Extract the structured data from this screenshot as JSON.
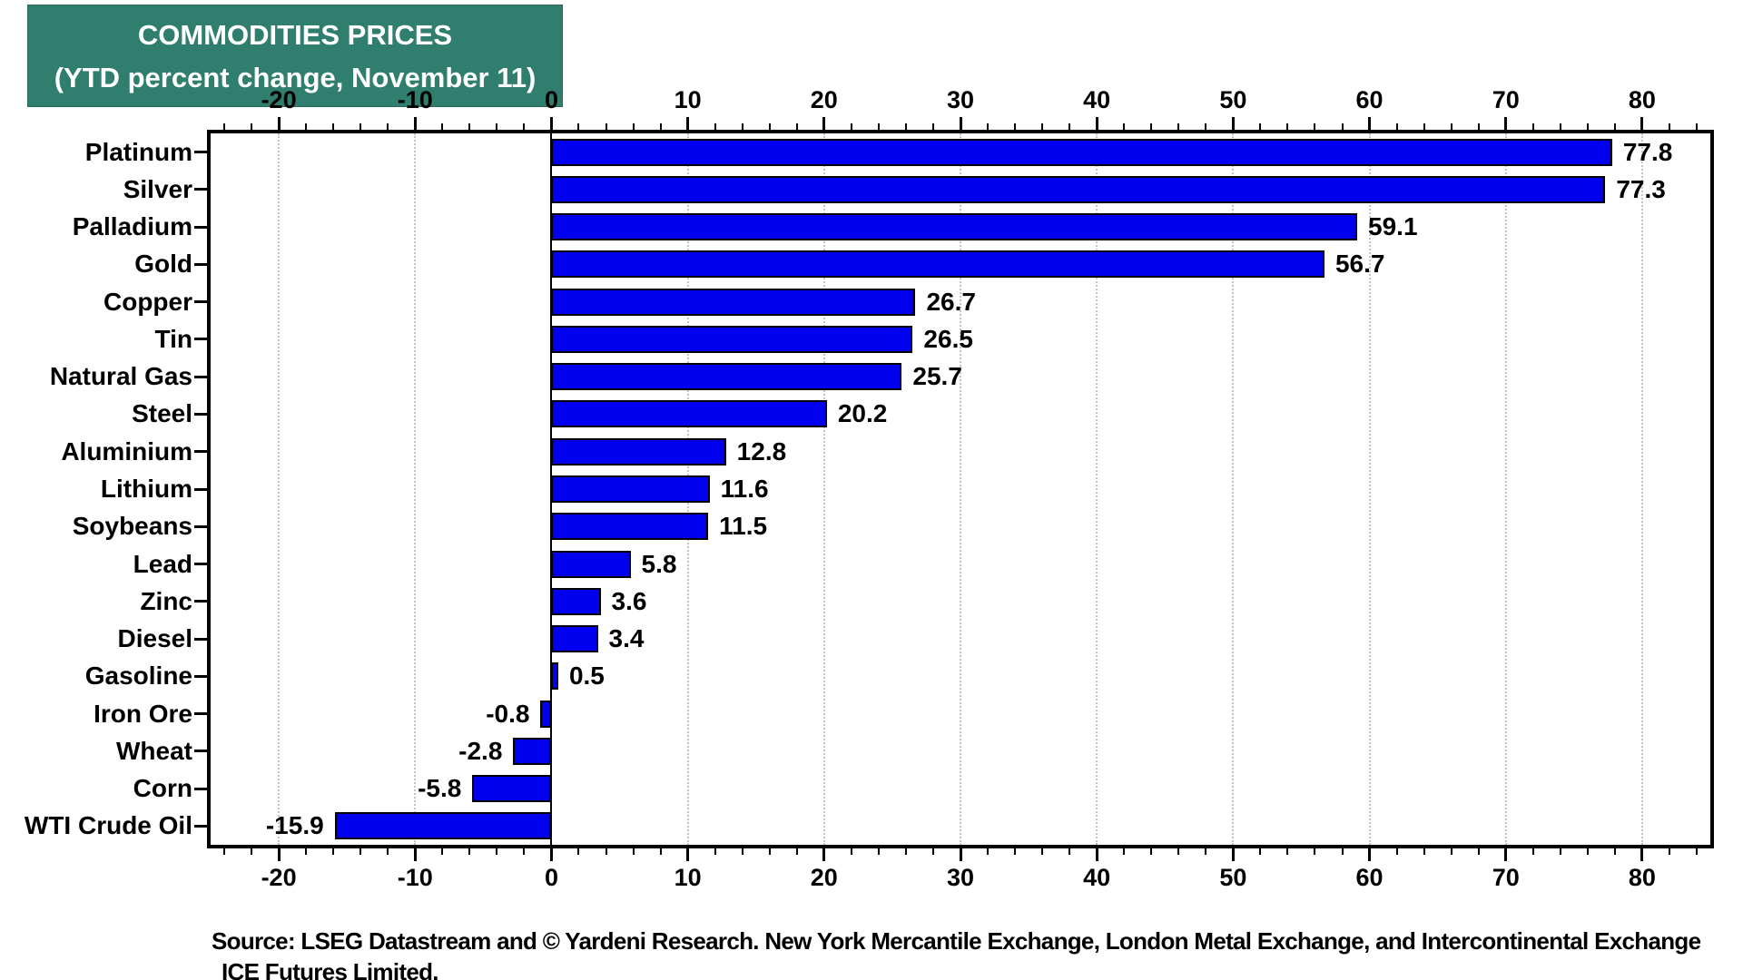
{
  "title": {
    "line1": "COMMODITIES PRICES",
    "line2": "(YTD percent change, November 11)"
  },
  "chart_data": {
    "type": "bar",
    "orientation": "horizontal",
    "title": "COMMODITIES PRICES (YTD percent change, November 11)",
    "categories": [
      "Platinum",
      "Silver",
      "Palladium",
      "Gold",
      "Copper",
      "Tin",
      "Natural Gas",
      "Steel",
      "Aluminium",
      "Lithium",
      "Soybeans",
      "Lead",
      "Zinc",
      "Diesel",
      "Gasoline",
      "Iron Ore",
      "Wheat",
      "Corn",
      "WTI Crude Oil"
    ],
    "values": [
      77.8,
      77.3,
      59.1,
      56.7,
      26.7,
      26.5,
      25.7,
      20.2,
      12.8,
      11.6,
      11.5,
      5.8,
      3.6,
      3.4,
      0.5,
      -0.8,
      -2.8,
      -5.8,
      -15.9
    ],
    "value_labels": [
      "77.8",
      "77.3",
      "59.1",
      "56.7",
      "26.7",
      "26.5",
      "25.7",
      "20.2",
      "12.8",
      "11.6",
      "11.5",
      "5.8",
      "3.6",
      "3.4",
      "0.5",
      "-0.8",
      "-2.8",
      "-5.8",
      "-15.9"
    ],
    "xlabel": "",
    "ylabel": "",
    "axis": {
      "min": -25,
      "max": 85,
      "major_ticks": [
        -20,
        -10,
        0,
        10,
        20,
        30,
        40,
        50,
        60,
        70,
        80
      ],
      "major_tick_labels": [
        "-20",
        "-10",
        "0",
        "10",
        "20",
        "30",
        "40",
        "50",
        "60",
        "70",
        "80"
      ],
      "minor_tick_step": 2,
      "grid": "dotted vertical at major ticks",
      "tick_label_positions": "top and bottom"
    },
    "legend": "none",
    "bar_color": "#0000EE",
    "grid_color": "#C4C4C4"
  },
  "source": {
    "line1": "Source: LSEG Datastream and © Yardeni Research. New York Mercantile Exchange, London Metal Exchange, and Intercontinental Exchange",
    "line2": "ICE Futures Limited."
  },
  "colors": {
    "title_background": "#2F7E6E",
    "title_text": "#FFFFFF",
    "bar_fill": "#0000EE",
    "axis_frame": "#000000",
    "gridline": "#C4C4C4"
  }
}
